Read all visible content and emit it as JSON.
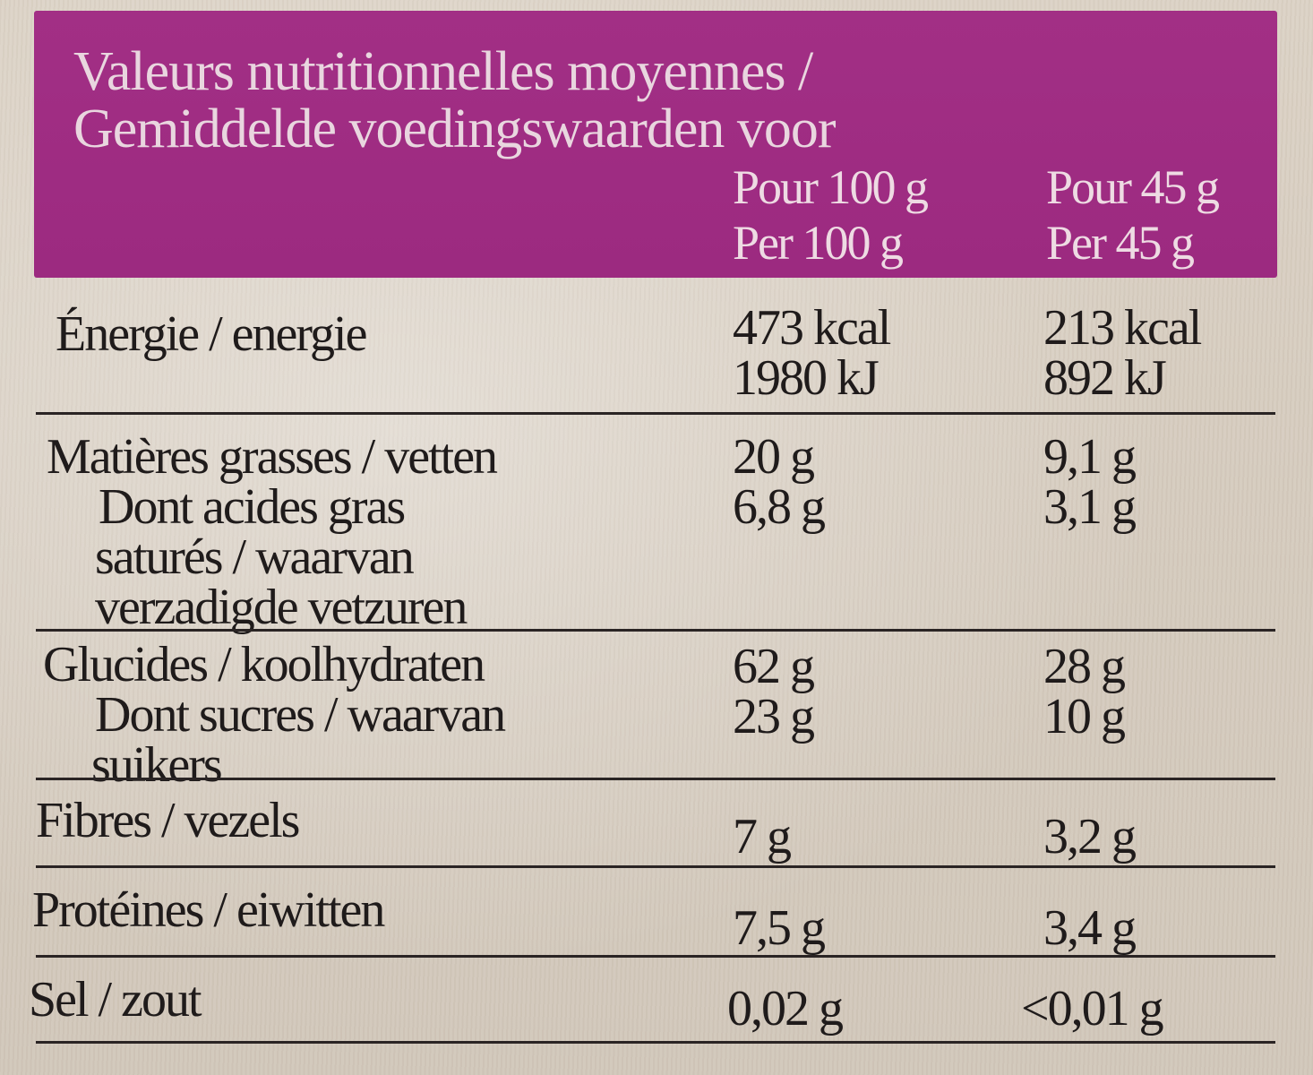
{
  "header": {
    "title_line1": "Valeurs nutritionnelles moyennes /",
    "title_line2": "Gemiddelde voedingswaarden voor",
    "col1_line1": "Pour 100 g",
    "col1_line2": "Per 100 g",
    "col2_line1": "Pour 45 g",
    "col2_line2": "Per 45 g"
  },
  "colors": {
    "header_band": "#a22f85",
    "header_text": "#e9d6df",
    "body_text": "#1f1b1b"
  },
  "rows": {
    "energy": {
      "label": "Énergie / energie",
      "per100_kcal": "473 kcal",
      "per100_kj": "1980 kJ",
      "per45_kcal": "213 kcal",
      "per45_kj": "892 kJ"
    },
    "fat": {
      "label": "Matières grasses / vetten",
      "sub_line1": "Dont acides gras",
      "sub_line2": "saturés / waarvan",
      "sub_line3": "verzadigde vetzuren",
      "per100": "20 g",
      "per100_sub": "6,8 g",
      "per45": "9,1 g",
      "per45_sub": "3,1 g"
    },
    "carbs": {
      "label": "Glucides / koolhydraten",
      "sub_line1": "Dont sucres / waarvan",
      "sub_line2": "suikers",
      "per100": "62 g",
      "per100_sub": "23 g",
      "per45": "28 g",
      "per45_sub": "10 g"
    },
    "fibre": {
      "label": "Fibres / vezels",
      "per100": "7 g",
      "per45": "3,2 g"
    },
    "protein": {
      "label": "Protéines / eiwitten",
      "per100": "7,5 g",
      "per45": "3,4 g"
    },
    "salt": {
      "label": "Sel / zout",
      "per100": "0,02 g",
      "per45": "<0,01 g"
    }
  }
}
